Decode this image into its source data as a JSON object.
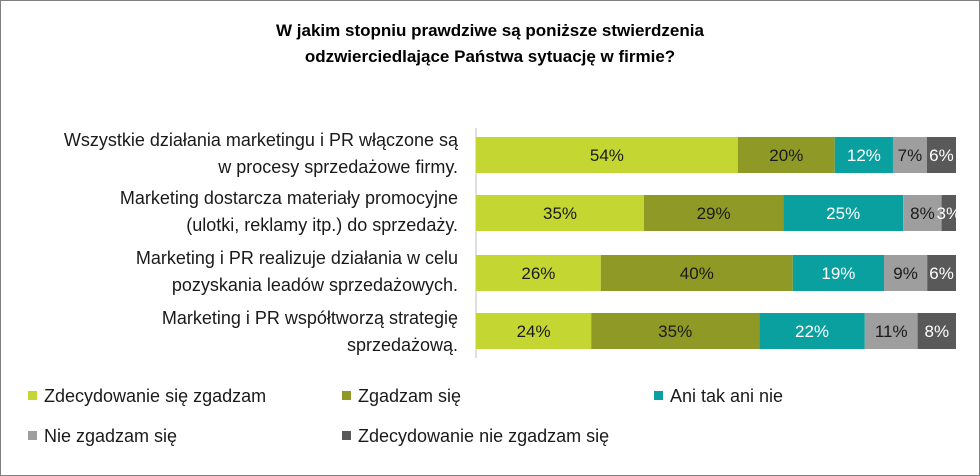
{
  "title_lines": [
    "W jakim stopniu prawdziwe są poniższe stwierdzenia",
    "odzwierciedlające Państwa sytuację w firmie?"
  ],
  "colors": [
    "#c4d631",
    "#8f9a26",
    "#0aa0a0",
    "#9e9e9e",
    "#595959"
  ],
  "chart_data": {
    "type": "bar",
    "orientation": "horizontal",
    "stacked": true,
    "percent_stacked": true,
    "title": "W jakim stopniu prawdziwe są poniższe stwierdzenia odzwierciedlające Państwa sytuację w firmie?",
    "categories": [
      {
        "lines": [
          "Wszystkie działania marketingu i PR włączone są",
          "w procesy sprzedażowe firmy."
        ]
      },
      {
        "lines": [
          "Marketing dostarcza materiały promocyjne",
          "(ulotki, reklamy itp.) do sprzedaży."
        ]
      },
      {
        "lines": [
          "Marketing i PR realizuje działania  w celu",
          "pozyskania leadów  sprzedażowych."
        ]
      },
      {
        "lines": [
          "Marketing i PR współtworzą strategię",
          "sprzedażową."
        ]
      }
    ],
    "series": [
      {
        "name": "Zdecydowanie się zgadzam",
        "values": [
          54,
          35,
          26,
          24
        ],
        "labels": [
          "54%",
          "35%",
          "26%",
          "24%"
        ]
      },
      {
        "name": "Zgadzam się",
        "values": [
          20,
          29,
          40,
          35
        ],
        "labels": [
          "20%",
          "29%",
          "40%",
          "35%"
        ]
      },
      {
        "name": "Ani tak ani nie",
        "values": [
          12,
          25,
          19,
          22
        ],
        "labels": [
          "12%",
          "25%",
          "19%",
          "22%"
        ]
      },
      {
        "name": "Nie zgadzam się",
        "values": [
          7,
          8,
          9,
          11
        ],
        "labels": [
          "7%",
          "8%",
          "9%",
          "11%"
        ]
      },
      {
        "name": "Zdecydowanie nie zgadzam się",
        "values": [
          6,
          3,
          6,
          8
        ],
        "labels": [
          "6%",
          "3%",
          "6%",
          "8%"
        ]
      }
    ],
    "legend_position": "bottom",
    "grid": false
  }
}
